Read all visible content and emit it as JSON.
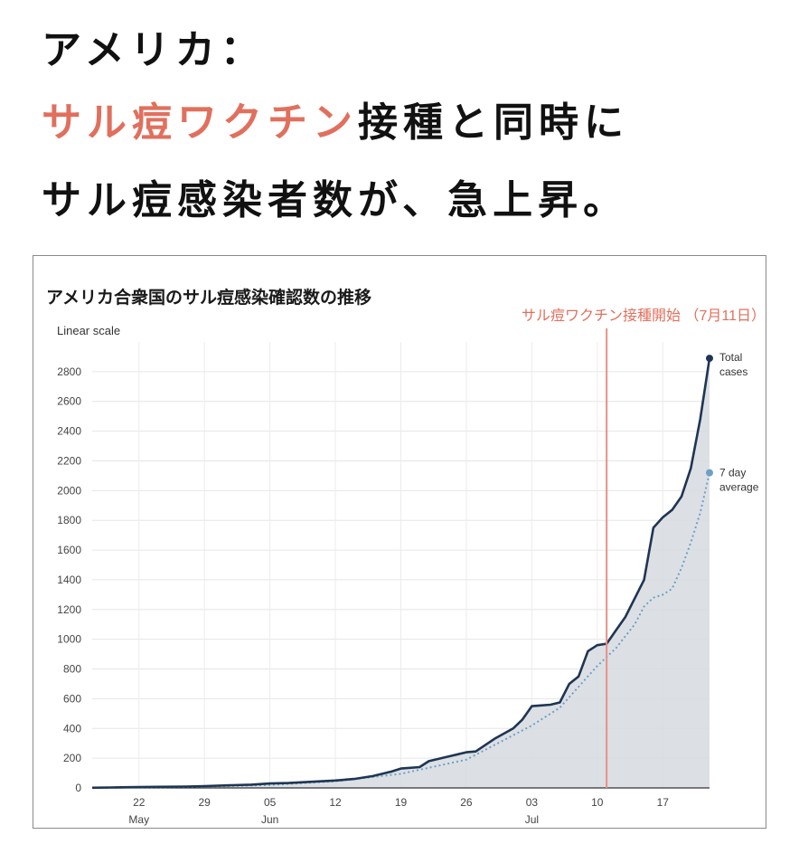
{
  "headline": {
    "line1": "アメリカ：",
    "line2_accent": "サル痘ワクチン",
    "line2_rest": "接種と同時に",
    "line3": "サル痘感染者数が、急上昇。"
  },
  "colors": {
    "accent": "#e0705d",
    "total_line": "#1f3553",
    "avg_line": "#6f9fc6",
    "area_fill": "#d6dadf",
    "marker_line": "#ea8f86"
  },
  "chart_data": {
    "type": "line",
    "title": "アメリカ合衆国のサル痘感染確認数の推移",
    "scale_label": "Linear scale",
    "ylim": [
      0,
      3000
    ],
    "yticks": [
      0,
      200,
      400,
      600,
      800,
      1000,
      1200,
      1400,
      1600,
      1800,
      2000,
      2200,
      2400,
      2600,
      2800
    ],
    "xlim": [
      "2022-05-17",
      "2022-07-22"
    ],
    "xticks": [
      {
        "date": "2022-05-22",
        "label": "22",
        "month": "May"
      },
      {
        "date": "2022-05-29",
        "label": "29",
        "month": ""
      },
      {
        "date": "2022-06-05",
        "label": "05",
        "month": "Jun"
      },
      {
        "date": "2022-06-12",
        "label": "12",
        "month": ""
      },
      {
        "date": "2022-06-19",
        "label": "19",
        "month": ""
      },
      {
        "date": "2022-06-26",
        "label": "26",
        "month": ""
      },
      {
        "date": "2022-07-03",
        "label": "03",
        "month": "Jul"
      },
      {
        "date": "2022-07-10",
        "label": "10",
        "month": ""
      },
      {
        "date": "2022-07-17",
        "label": "17",
        "month": ""
      }
    ],
    "annotation": {
      "date": "2022-07-11",
      "label": "サル痘ワクチン接種開始 （7月11日）"
    },
    "series": [
      {
        "name": "Total cases",
        "style": "solid",
        "points": [
          [
            "2022-05-17",
            1
          ],
          [
            "2022-05-19",
            3
          ],
          [
            "2022-05-21",
            5
          ],
          [
            "2022-05-24",
            7
          ],
          [
            "2022-05-27",
            9
          ],
          [
            "2022-05-29",
            12
          ],
          [
            "2022-06-01",
            18
          ],
          [
            "2022-06-03",
            22
          ],
          [
            "2022-06-05",
            30
          ],
          [
            "2022-06-07",
            33
          ],
          [
            "2022-06-09",
            40
          ],
          [
            "2022-06-12",
            50
          ],
          [
            "2022-06-14",
            60
          ],
          [
            "2022-06-16",
            80
          ],
          [
            "2022-06-18",
            110
          ],
          [
            "2022-06-19",
            130
          ],
          [
            "2022-06-21",
            140
          ],
          [
            "2022-06-22",
            180
          ],
          [
            "2022-06-24",
            210
          ],
          [
            "2022-06-26",
            240
          ],
          [
            "2022-06-27",
            245
          ],
          [
            "2022-06-29",
            330
          ],
          [
            "2022-07-01",
            400
          ],
          [
            "2022-07-02",
            460
          ],
          [
            "2022-07-03",
            550
          ],
          [
            "2022-07-04",
            555
          ],
          [
            "2022-07-05",
            560
          ],
          [
            "2022-07-06",
            575
          ],
          [
            "2022-07-07",
            700
          ],
          [
            "2022-07-08",
            750
          ],
          [
            "2022-07-09",
            920
          ],
          [
            "2022-07-10",
            960
          ],
          [
            "2022-07-11",
            970
          ],
          [
            "2022-07-12",
            1060
          ],
          [
            "2022-07-13",
            1150
          ],
          [
            "2022-07-15",
            1400
          ],
          [
            "2022-07-16",
            1750
          ],
          [
            "2022-07-17",
            1820
          ],
          [
            "2022-07-18",
            1870
          ],
          [
            "2022-07-19",
            1960
          ],
          [
            "2022-07-20",
            2150
          ],
          [
            "2022-07-21",
            2480
          ],
          [
            "2022-07-22",
            2890
          ]
        ]
      },
      {
        "name": "7 day average",
        "style": "dotted",
        "points": [
          [
            "2022-05-17",
            0
          ],
          [
            "2022-05-22",
            3
          ],
          [
            "2022-05-29",
            8
          ],
          [
            "2022-06-05",
            20
          ],
          [
            "2022-06-12",
            45
          ],
          [
            "2022-06-19",
            95
          ],
          [
            "2022-06-26",
            190
          ],
          [
            "2022-07-03",
            420
          ],
          [
            "2022-07-06",
            540
          ],
          [
            "2022-07-10",
            820
          ],
          [
            "2022-07-12",
            940
          ],
          [
            "2022-07-14",
            1100
          ],
          [
            "2022-07-15",
            1220
          ],
          [
            "2022-07-16",
            1280
          ],
          [
            "2022-07-17",
            1300
          ],
          [
            "2022-07-18",
            1340
          ],
          [
            "2022-07-19",
            1480
          ],
          [
            "2022-07-20",
            1650
          ],
          [
            "2022-07-21",
            1850
          ],
          [
            "2022-07-22",
            2120
          ]
        ]
      }
    ],
    "end_labels": [
      {
        "series": "Total cases",
        "lines": [
          "Total",
          "cases"
        ]
      },
      {
        "series": "7 day average",
        "lines": [
          "7 day",
          "average"
        ]
      }
    ]
  }
}
